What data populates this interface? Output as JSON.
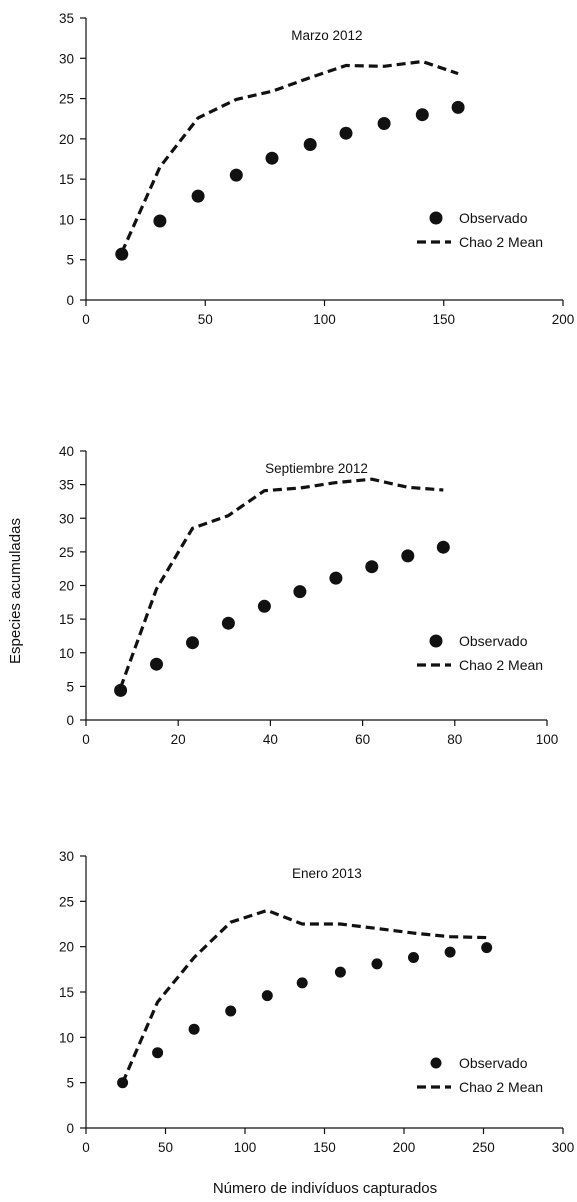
{
  "figure": {
    "ylabel": "Especies acumuladas",
    "xlabel": "Número de indivíduos capturados"
  },
  "chart_data": [
    {
      "type": "scatter",
      "title": "Marzo 2012",
      "xlim": [
        0,
        200
      ],
      "ylim": [
        0,
        35
      ],
      "x_ticks": [
        0,
        50,
        100,
        150,
        200
      ],
      "y_ticks": [
        0,
        5,
        10,
        15,
        20,
        25,
        30,
        35
      ],
      "legend_position": "right",
      "series": [
        {
          "name": "Observado",
          "style": "markers",
          "color": "#111111",
          "x": [
            15,
            31,
            47,
            63,
            78,
            94,
            109,
            125,
            141,
            156
          ],
          "y": [
            5.7,
            9.8,
            12.9,
            15.5,
            17.6,
            19.3,
            20.7,
            21.9,
            23.0,
            23.9
          ]
        },
        {
          "name": "Chao 2 Mean",
          "style": "dashed-line",
          "color": "#111111",
          "x": [
            15,
            31,
            47,
            63,
            78,
            94,
            109,
            125,
            141,
            156
          ],
          "y": [
            5.9,
            16.5,
            22.6,
            24.9,
            25.9,
            27.6,
            29.1,
            29.0,
            29.6,
            28.1
          ]
        }
      ]
    },
    {
      "type": "scatter",
      "title": "Septiembre 2012",
      "xlim": [
        0,
        100
      ],
      "ylim": [
        0,
        40
      ],
      "x_ticks": [
        0,
        20,
        40,
        60,
        80,
        100
      ],
      "y_ticks": [
        0,
        5,
        10,
        15,
        20,
        25,
        30,
        35,
        40
      ],
      "legend_position": "right",
      "series": [
        {
          "name": "Observado",
          "style": "markers",
          "color": "#111111",
          "x": [
            7.5,
            15.3,
            23.1,
            30.9,
            38.7,
            46.4,
            54.2,
            62.0,
            69.8,
            77.5
          ],
          "y": [
            4.4,
            8.3,
            11.5,
            14.4,
            16.9,
            19.1,
            21.1,
            22.8,
            24.4,
            25.7
          ]
        },
        {
          "name": "Chao 2 Mean",
          "style": "dashed-line",
          "color": "#111111",
          "x": [
            7.5,
            15.3,
            23.1,
            30.9,
            38.7,
            46.4,
            54.2,
            62.0,
            69.8,
            77.5
          ],
          "y": [
            4.8,
            19.5,
            28.5,
            30.4,
            34.1,
            34.5,
            35.3,
            35.8,
            34.6,
            34.2
          ]
        }
      ]
    },
    {
      "type": "scatter",
      "title": "Enero 2013",
      "xlim": [
        0,
        300
      ],
      "ylim": [
        0,
        30
      ],
      "x_ticks": [
        0,
        50,
        100,
        150,
        200,
        250,
        300
      ],
      "y_ticks": [
        0,
        5,
        10,
        15,
        20,
        25,
        30
      ],
      "legend_position": "right",
      "series": [
        {
          "name": "Observado",
          "style": "markers",
          "color": "#111111",
          "x": [
            23,
            45,
            68,
            91,
            114,
            136,
            160,
            183,
            206,
            229,
            252
          ],
          "y": [
            5.0,
            8.3,
            10.9,
            12.9,
            14.6,
            16.0,
            17.2,
            18.1,
            18.8,
            19.4,
            19.9
          ]
        },
        {
          "name": "Chao 2 Mean",
          "style": "dashed-line",
          "color": "#111111",
          "x": [
            23,
            45,
            68,
            91,
            114,
            136,
            160,
            183,
            206,
            229,
            252
          ],
          "y": [
            5.0,
            13.9,
            18.8,
            22.7,
            24.0,
            22.5,
            22.5,
            22.0,
            21.5,
            21.1,
            21.0
          ]
        }
      ]
    }
  ]
}
